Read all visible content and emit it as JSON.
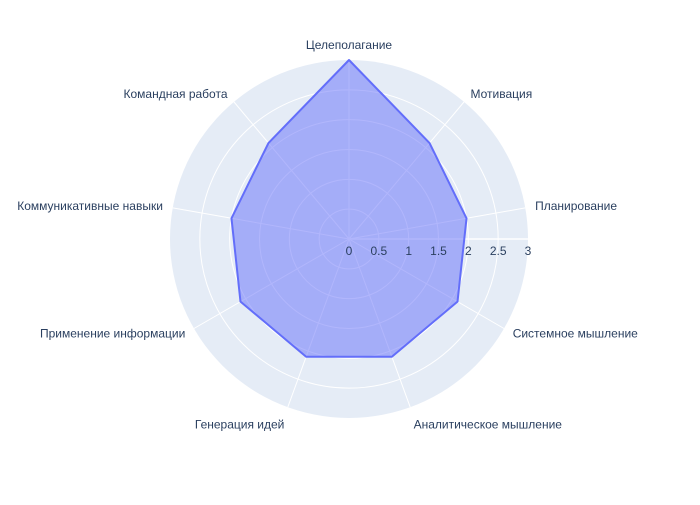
{
  "chart_data": {
    "type": "radar",
    "categories": [
      "Целеполагание",
      "Мотивация",
      "Планирование",
      "Системное мышление",
      "Аналитическое мышление",
      "Генерация идей",
      "Применение информации",
      "Коммуникативные навыки",
      "Командная работа"
    ],
    "series": [
      {
        "values": [
          3,
          2.1,
          2,
          2.1,
          2.1,
          2.1,
          2.1,
          2,
          2.1
        ],
        "fill_color": "#636efa",
        "fill_opacity": 0.5
      }
    ],
    "radial_range": [
      0,
      3
    ],
    "radial_ticks": [
      "0",
      "0.5",
      "1",
      "1.5",
      "2",
      "2.5",
      "3"
    ],
    "radial_tick_values": [
      0,
      0.5,
      1,
      1.5,
      2,
      2.5,
      3
    ],
    "angular_direction": "clockwise",
    "start_category_at": "top",
    "grid": true,
    "colors": {
      "polar_background": "#e5ecf6",
      "grid": "#ffffff",
      "text": "#2a3f5f",
      "trace_line": "#636efa"
    }
  }
}
